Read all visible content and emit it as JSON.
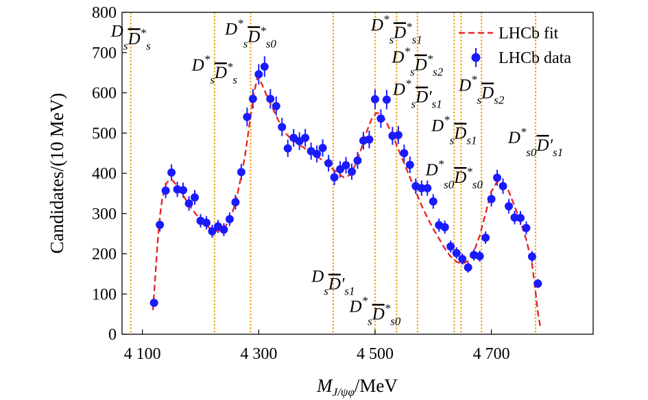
{
  "chart_data": {
    "type": "scatter",
    "xlabel": "M",
    "xlabel_sub": "J/ψφ",
    "xlabel_unit": "/MeV",
    "ylabel": "Candidates/(10 MeV)",
    "xlim": [
      4065,
      4875
    ],
    "ylim": [
      0,
      800
    ],
    "xticks": [
      4100,
      4300,
      4500,
      4700
    ],
    "xtick_labels": [
      "4 100",
      "4 300",
      "4 500",
      "4 700"
    ],
    "yticks": [
      0,
      100,
      200,
      300,
      400,
      500,
      600,
      700,
      800
    ],
    "ytick_labels": [
      "0",
      "100",
      "200",
      "300",
      "400",
      "500",
      "600",
      "700",
      "800"
    ],
    "legend": {
      "position": "top-right",
      "fit_label": "LHCb fit",
      "data_label": "LHCb data"
    },
    "colors": {
      "fit": "#e8252b",
      "data": "#1a1aff",
      "threshold": "#f2a71b"
    },
    "thresholds": [
      4080,
      4224,
      4286,
      4428,
      4500,
      4537,
      4573,
      4636,
      4648,
      4683,
      4776
    ],
    "annotations": [
      {
        "base": "D",
        "sub": "s",
        "bar": "D",
        "sup2": "*",
        "sub2": "s",
        "x": 4080,
        "y": 740
      },
      {
        "base": "D",
        "sup": "*",
        "sub": "s",
        "bar": "D",
        "sup2": "*",
        "sub2": "s",
        "x": 4224,
        "y": 655
      },
      {
        "base": "D",
        "sup": "*",
        "sub": "s",
        "bar": "D",
        "sup2": "*",
        "sub2": "s0",
        "x": 4286,
        "y": 745
      },
      {
        "base": "D",
        "sub": "s",
        "bar": "D",
        "prime": "′",
        "sub2": "s1",
        "x": 4428,
        "y": 130
      },
      {
        "base": "D",
        "sup": "*",
        "sub": "s",
        "bar": "D",
        "sup2": "*",
        "sub2": "s0",
        "x": 4500,
        "y": 55
      },
      {
        "base": "D",
        "sup": "*",
        "sub": "s",
        "bar": "D",
        "sup2": "*",
        "sub2": "s1",
        "x": 4537,
        "y": 755
      },
      {
        "base": "D",
        "sup": "*",
        "sub": "s",
        "bar": "D",
        "sup2": "*",
        "sub2": "s2",
        "x": 4573,
        "y": 675
      },
      {
        "base": "D",
        "sup": "*",
        "sub": "s",
        "bar": "D",
        "prime": "′",
        "sub2": "s1",
        "x": 4573,
        "y": 595
      },
      {
        "base": "D",
        "sup": "*",
        "sub": "s",
        "bar": "D",
        "sub2": "s2",
        "x": 4683,
        "y": 605
      },
      {
        "base": "D",
        "sup": "*",
        "sub": "s",
        "bar": "D",
        "sub2": "s1",
        "x": 4636,
        "y": 505
      },
      {
        "base": "D",
        "sup": "*",
        "sub": "s0",
        "bar": "D",
        "sup2": "*",
        "sub2": "s0",
        "x": 4636,
        "y": 395
      },
      {
        "base": "D",
        "sup": "*",
        "sub": "s0",
        "bar": "D",
        "prime": "′",
        "sub2": "s1",
        "x": 4776,
        "y": 475
      }
    ],
    "series": [
      {
        "name": "LHCb data",
        "kind": "points",
        "x": [
          4120,
          4130,
          4140,
          4150,
          4160,
          4170,
          4180,
          4190,
          4200,
          4210,
          4220,
          4230,
          4240,
          4250,
          4260,
          4270,
          4280,
          4290,
          4300,
          4310,
          4320,
          4330,
          4340,
          4350,
          4360,
          4370,
          4380,
          4390,
          4400,
          4410,
          4420,
          4430,
          4440,
          4450,
          4460,
          4470,
          4480,
          4490,
          4500,
          4510,
          4520,
          4530,
          4540,
          4550,
          4560,
          4570,
          4580,
          4590,
          4600,
          4610,
          4620,
          4630,
          4640,
          4650,
          4660,
          4670,
          4680,
          4690,
          4700,
          4710,
          4720,
          4730,
          4740,
          4750,
          4760,
          4770,
          4780
        ],
        "y": [
          78,
          272,
          357,
          402,
          360,
          358,
          325,
          340,
          282,
          277,
          256,
          268,
          260,
          286,
          328,
          403,
          540,
          585,
          646,
          665,
          585,
          567,
          515,
          462,
          488,
          480,
          488,
          455,
          448,
          463,
          425,
          390,
          410,
          420,
          404,
          432,
          481,
          484,
          584,
          536,
          583,
          493,
          495,
          450,
          421,
          368,
          363,
          363,
          330,
          271,
          266,
          218,
          202,
          187,
          166,
          197,
          194,
          240,
          336,
          389,
          368,
          318,
          290,
          289,
          264,
          193,
          126
        ]
      },
      {
        "name": "LHCb fit",
        "kind": "curve",
        "x": [
          4118,
          4122,
          4126,
          4130,
          4134,
          4138,
          4142,
          4147,
          4152,
          4160,
          4170,
          4180,
          4190,
          4200,
          4210,
          4220,
          4230,
          4240,
          4250,
          4260,
          4268,
          4276,
          4284,
          4292,
          4298,
          4306,
          4316,
          4326,
          4336,
          4346,
          4356,
          4366,
          4376,
          4386,
          4396,
          4406,
          4416,
          4426,
          4436,
          4446,
          4456,
          4466,
          4476,
          4486,
          4494,
          4502,
          4510,
          4520,
          4530,
          4540,
          4550,
          4560,
          4570,
          4580,
          4590,
          4600,
          4610,
          4620,
          4630,
          4640,
          4650,
          4660,
          4670,
          4680,
          4690,
          4700,
          4710,
          4720,
          4730,
          4740,
          4750,
          4760,
          4770,
          4776,
          4780,
          4784
        ],
        "y": [
          60,
          140,
          225,
          292,
          335,
          362,
          377,
          383,
          382,
          368,
          345,
          322,
          302,
          285,
          270,
          260,
          256,
          262,
          285,
          325,
          380,
          440,
          520,
          600,
          640,
          620,
          585,
          555,
          525,
          500,
          485,
          475,
          465,
          455,
          447,
          436,
          425,
          412,
          400,
          390,
          395,
          420,
          460,
          505,
          535,
          550,
          548,
          525,
          495,
          460,
          425,
          390,
          355,
          320,
          290,
          262,
          238,
          213,
          193,
          180,
          175,
          182,
          205,
          245,
          300,
          355,
          380,
          375,
          355,
          318,
          280,
          235,
          175,
          105,
          55,
          20
        ]
      }
    ]
  }
}
